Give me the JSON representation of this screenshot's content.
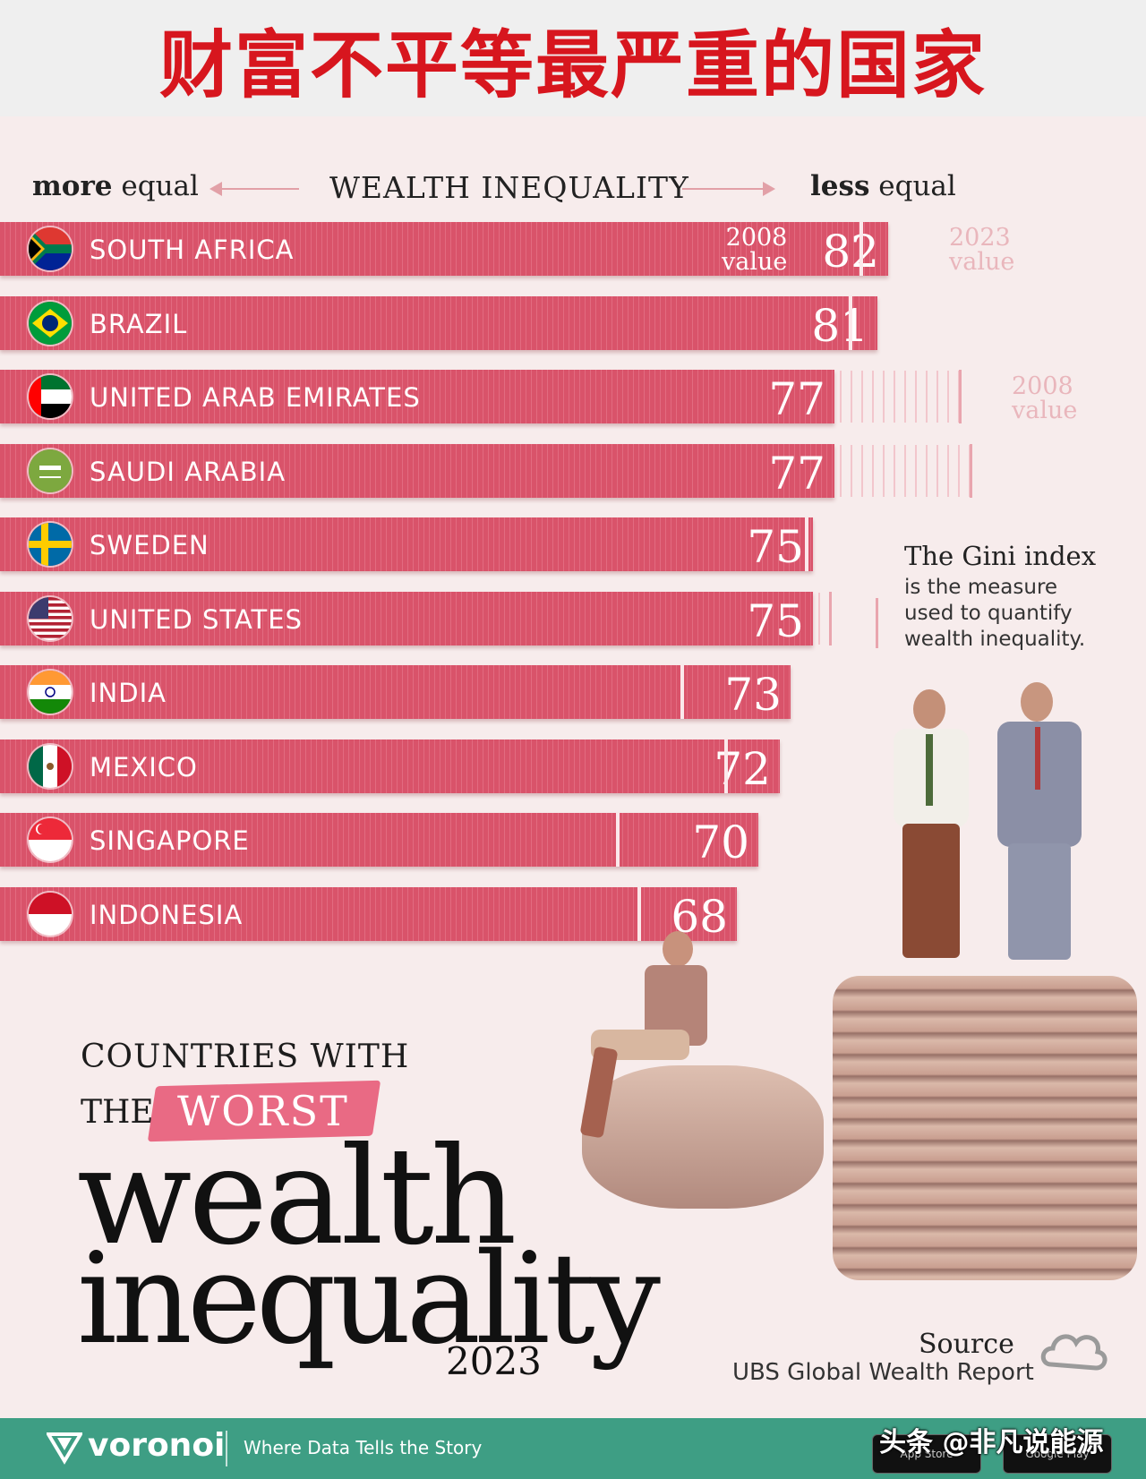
{
  "banner": {
    "title": "财富不平等最严重的国家"
  },
  "axis": {
    "left_bold": "more",
    "left_rest": " equal",
    "center": "WEALTH INEQUALITY",
    "right_bold": "less",
    "right_rest": " equal"
  },
  "annotations": {
    "value_2008_in": "2008\nvalue",
    "value_2023_out": "2023\nvalue",
    "value_2008_out": "2008\nvalue"
  },
  "gini": {
    "title": "The Gini index",
    "desc": "is the measure used to quantify wealth inequality."
  },
  "chart_data": {
    "type": "bar",
    "orientation": "horizontal",
    "title": "WEALTH INEQUALITY",
    "categories": [
      "SOUTH AFRICA",
      "BRAZIL",
      "UNITED ARAB EMIRATES",
      "SAUDI ARABIA",
      "SWEDEN",
      "UNITED STATES",
      "INDIA",
      "MEXICO",
      "SINGAPORE",
      "INDONESIA"
    ],
    "series": [
      {
        "name": "2023 value",
        "values": [
          82,
          81,
          77,
          77,
          75,
          75,
          73,
          72,
          70,
          68
        ]
      },
      {
        "name": "2008 value",
        "values": [
          79.5,
          78.5,
          88.5,
          89.5,
          74.5,
          76.5,
          63,
          67,
          57,
          59
        ]
      }
    ],
    "xlim": [
      0,
      100
    ],
    "colors": {
      "bar": "#d9536a",
      "marker": "#fbe8eb",
      "ghost": "#e9a5ae"
    }
  },
  "title_block": {
    "line1": "COUNTRIES WITH",
    "the": "THE",
    "worst": "WORST",
    "wealth": "wealth",
    "inequality": "inequality",
    "year": "2023"
  },
  "source": {
    "label": "Source",
    "value": "UBS Global Wealth Report"
  },
  "footer": {
    "brand": "voronoi",
    "tagline": "Where Data Tells the Story",
    "watermark": "头条 @非凡说能源",
    "app_store": "App Store",
    "google_play": "Google Play"
  },
  "icons": [
    "flag-south-africa-icon",
    "flag-brazil-icon",
    "flag-uae-icon",
    "flag-saudi-arabia-icon",
    "flag-sweden-icon",
    "flag-usa-icon",
    "flag-india-icon",
    "flag-mexico-icon",
    "flag-singapore-icon",
    "flag-indonesia-icon",
    "voronoi-logo-icon",
    "cloud-logo-icon"
  ]
}
